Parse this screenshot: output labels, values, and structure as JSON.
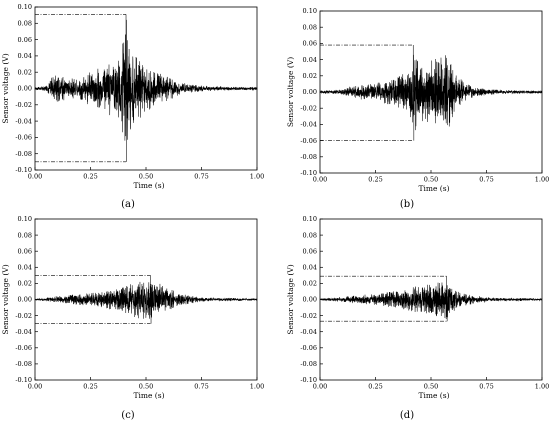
{
  "chart_data": [
    {
      "type": "line",
      "panel_label": "(a)",
      "xlabel": "Time (s)",
      "ylabel": "Sensor voltage (V)",
      "xlim": [
        0.0,
        1.0
      ],
      "ylim": [
        -0.1,
        0.1
      ],
      "x_ticks": [
        "0.00",
        "0.25",
        "0.50",
        "0.75",
        "1.00"
      ],
      "y_ticks": [
        "-0.10",
        "-0.08",
        "-0.06",
        "-0.04",
        "-0.02",
        "0.00",
        "0.02",
        "0.04",
        "0.06",
        "0.08",
        "0.10"
      ],
      "peak_positive": 0.091,
      "peak_negative": -0.09,
      "peak_time": 0.41,
      "envelope": {
        "x": [
          0.0,
          0.05,
          0.08,
          0.1,
          0.15,
          0.2,
          0.25,
          0.3,
          0.35,
          0.38,
          0.4,
          0.41,
          0.42,
          0.45,
          0.5,
          0.55,
          0.6,
          0.65,
          0.7,
          0.75,
          0.8,
          0.9,
          1.0
        ],
        "y": [
          0.002,
          0.003,
          0.015,
          0.018,
          0.012,
          0.013,
          0.022,
          0.028,
          0.035,
          0.045,
          0.06,
          0.091,
          0.06,
          0.045,
          0.03,
          0.02,
          0.015,
          0.008,
          0.005,
          0.004,
          0.003,
          0.002,
          0.002
        ]
      }
    },
    {
      "type": "line",
      "panel_label": "(b)",
      "xlabel": "Time (s)",
      "ylabel": "Sensor voltage (V)",
      "xlim": [
        0.0,
        1.0
      ],
      "ylim": [
        -0.1,
        0.1
      ],
      "x_ticks": [
        "0.00",
        "0.25",
        "0.50",
        "0.75",
        "1.00"
      ],
      "y_ticks": [
        "-0.10",
        "-0.08",
        "-0.06",
        "-0.04",
        "-0.02",
        "0.00",
        "0.02",
        "0.04",
        "0.06",
        "0.08",
        "0.10"
      ],
      "peak_positive": 0.058,
      "peak_negative": -0.06,
      "peak_time": 0.42,
      "envelope": {
        "x": [
          0.0,
          0.05,
          0.1,
          0.15,
          0.2,
          0.25,
          0.3,
          0.35,
          0.4,
          0.42,
          0.45,
          0.5,
          0.55,
          0.57,
          0.6,
          0.65,
          0.7,
          0.75,
          0.8,
          0.9,
          1.0
        ],
        "y": [
          0.002,
          0.002,
          0.004,
          0.008,
          0.01,
          0.012,
          0.015,
          0.02,
          0.03,
          0.058,
          0.035,
          0.04,
          0.045,
          0.052,
          0.03,
          0.012,
          0.006,
          0.004,
          0.003,
          0.002,
          0.002
        ]
      }
    },
    {
      "type": "line",
      "panel_label": "(c)",
      "xlabel": "Time (s)",
      "ylabel": "Sensor voltage (V)",
      "xlim": [
        0.0,
        1.0
      ],
      "ylim": [
        -0.1,
        0.1
      ],
      "x_ticks": [
        "0.00",
        "0.25",
        "0.50",
        "0.75",
        "1.00"
      ],
      "y_ticks": [
        "-0.10",
        "-0.08",
        "-0.06",
        "-0.04",
        "-0.02",
        "0.00",
        "0.02",
        "0.04",
        "0.06",
        "0.08",
        "0.10"
      ],
      "peak_positive": 0.03,
      "peak_negative": -0.03,
      "peak_time": 0.52,
      "envelope": {
        "x": [
          0.0,
          0.05,
          0.1,
          0.15,
          0.2,
          0.25,
          0.3,
          0.35,
          0.4,
          0.45,
          0.5,
          0.52,
          0.55,
          0.6,
          0.65,
          0.7,
          0.75,
          0.8,
          0.9,
          1.0
        ],
        "y": [
          0.001,
          0.002,
          0.004,
          0.006,
          0.007,
          0.008,
          0.01,
          0.013,
          0.018,
          0.022,
          0.026,
          0.028,
          0.022,
          0.014,
          0.008,
          0.005,
          0.003,
          0.002,
          0.002,
          0.001
        ]
      }
    },
    {
      "type": "line",
      "panel_label": "(d)",
      "xlabel": "Time (s)",
      "ylabel": "Sensor voltage (V)",
      "xlim": [
        0.0,
        1.0
      ],
      "ylim": [
        -0.1,
        0.1
      ],
      "x_ticks": [
        "0.00",
        "0.25",
        "0.50",
        "0.75",
        "1.00"
      ],
      "y_ticks": [
        "-0.10",
        "-0.08",
        "-0.06",
        "-0.04",
        "-0.02",
        "0.00",
        "0.02",
        "0.04",
        "0.06",
        "0.08",
        "0.10"
      ],
      "peak_positive": 0.029,
      "peak_negative": -0.027,
      "peak_time": 0.57,
      "envelope": {
        "x": [
          0.0,
          0.05,
          0.1,
          0.15,
          0.2,
          0.25,
          0.3,
          0.35,
          0.4,
          0.45,
          0.5,
          0.55,
          0.57,
          0.6,
          0.65,
          0.7,
          0.75,
          0.8,
          0.9,
          1.0
        ],
        "y": [
          0.001,
          0.002,
          0.003,
          0.005,
          0.006,
          0.007,
          0.009,
          0.011,
          0.014,
          0.018,
          0.02,
          0.022,
          0.026,
          0.015,
          0.008,
          0.005,
          0.003,
          0.002,
          0.002,
          0.001
        ]
      }
    }
  ]
}
